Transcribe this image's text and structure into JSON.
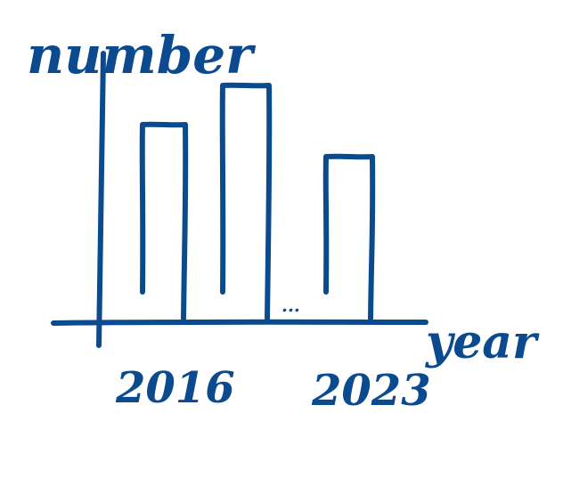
{
  "chart_data": {
    "type": "bar",
    "title": "",
    "xlabel": "year",
    "ylabel": "number",
    "categories": [
      "2016",
      "",
      "2023"
    ],
    "values": [
      218,
      262,
      182
    ],
    "x_tick_labels": [
      "2016",
      "2023"
    ],
    "ellipsis": "...",
    "grid": false,
    "legend": "none"
  },
  "colors": {
    "ink": "#0b4a8e",
    "background": "#ffffff"
  }
}
